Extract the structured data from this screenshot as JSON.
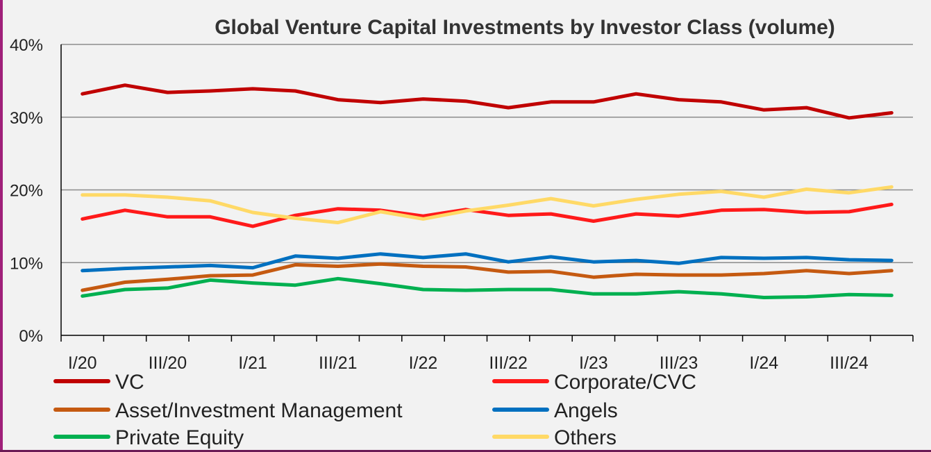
{
  "chart_data": {
    "type": "line",
    "title": "Global Venture Capital Investments by Investor Class (volume)",
    "xlabel": "",
    "ylabel": "",
    "ylim": [
      0,
      40
    ],
    "y_ticks": [
      "0%",
      "10%",
      "20%",
      "30%",
      "40%"
    ],
    "y_tick_values": [
      0,
      10,
      20,
      30,
      40
    ],
    "x_tick_labels": [
      "I/20",
      "III/20",
      "I/21",
      "III/21",
      "I/22",
      "III/22",
      "I/23",
      "III/23",
      "I/24",
      "III/24"
    ],
    "categories": [
      "I/20",
      "II/20",
      "III/20",
      "IV/20",
      "I/21",
      "II/21",
      "III/21",
      "IV/21",
      "I/22",
      "II/22",
      "III/22",
      "IV/22",
      "I/23",
      "II/23",
      "III/23",
      "IV/23",
      "I/24",
      "II/24",
      "III/24",
      "IV/24"
    ],
    "grid": "horizontal",
    "legend_position": "bottom",
    "series": [
      {
        "name": "VC",
        "color": "#c00000",
        "values": [
          33.2,
          34.4,
          33.4,
          33.6,
          33.9,
          33.6,
          32.4,
          32.0,
          32.5,
          32.2,
          31.3,
          32.1,
          32.1,
          33.2,
          32.4,
          32.1,
          31.0,
          31.3,
          29.9,
          30.6
        ]
      },
      {
        "name": "Corporate/CVC",
        "color": "#ff1a1a",
        "values": [
          16.0,
          17.2,
          16.3,
          16.3,
          15.0,
          16.5,
          17.4,
          17.2,
          16.4,
          17.3,
          16.5,
          16.7,
          15.7,
          16.7,
          16.4,
          17.2,
          17.3,
          16.9,
          17.0,
          18.0
        ]
      },
      {
        "name": "Asset/Investment Management",
        "color": "#c55a11",
        "values": [
          6.2,
          7.3,
          7.7,
          8.2,
          8.3,
          9.7,
          9.5,
          9.8,
          9.5,
          9.4,
          8.7,
          8.8,
          8.0,
          8.4,
          8.3,
          8.3,
          8.5,
          8.9,
          8.5,
          8.9
        ]
      },
      {
        "name": "Angels",
        "color": "#0070c0",
        "values": [
          8.9,
          9.2,
          9.4,
          9.6,
          9.3,
          10.9,
          10.6,
          11.2,
          10.7,
          11.2,
          10.1,
          10.8,
          10.1,
          10.3,
          9.9,
          10.7,
          10.6,
          10.7,
          10.4,
          10.3
        ]
      },
      {
        "name": "Private Equity",
        "color": "#00b050",
        "values": [
          5.4,
          6.3,
          6.5,
          7.6,
          7.2,
          6.9,
          7.8,
          7.1,
          6.3,
          6.2,
          6.3,
          6.3,
          5.7,
          5.7,
          6.0,
          5.7,
          5.2,
          5.3,
          5.6,
          5.5
        ]
      },
      {
        "name": "Others",
        "color": "#ffd966",
        "values": [
          19.3,
          19.3,
          19.0,
          18.5,
          16.9,
          16.1,
          15.5,
          17.0,
          16.0,
          17.1,
          17.9,
          18.8,
          17.8,
          18.7,
          19.4,
          19.8,
          19.0,
          20.1,
          19.6,
          20.4
        ]
      }
    ]
  }
}
